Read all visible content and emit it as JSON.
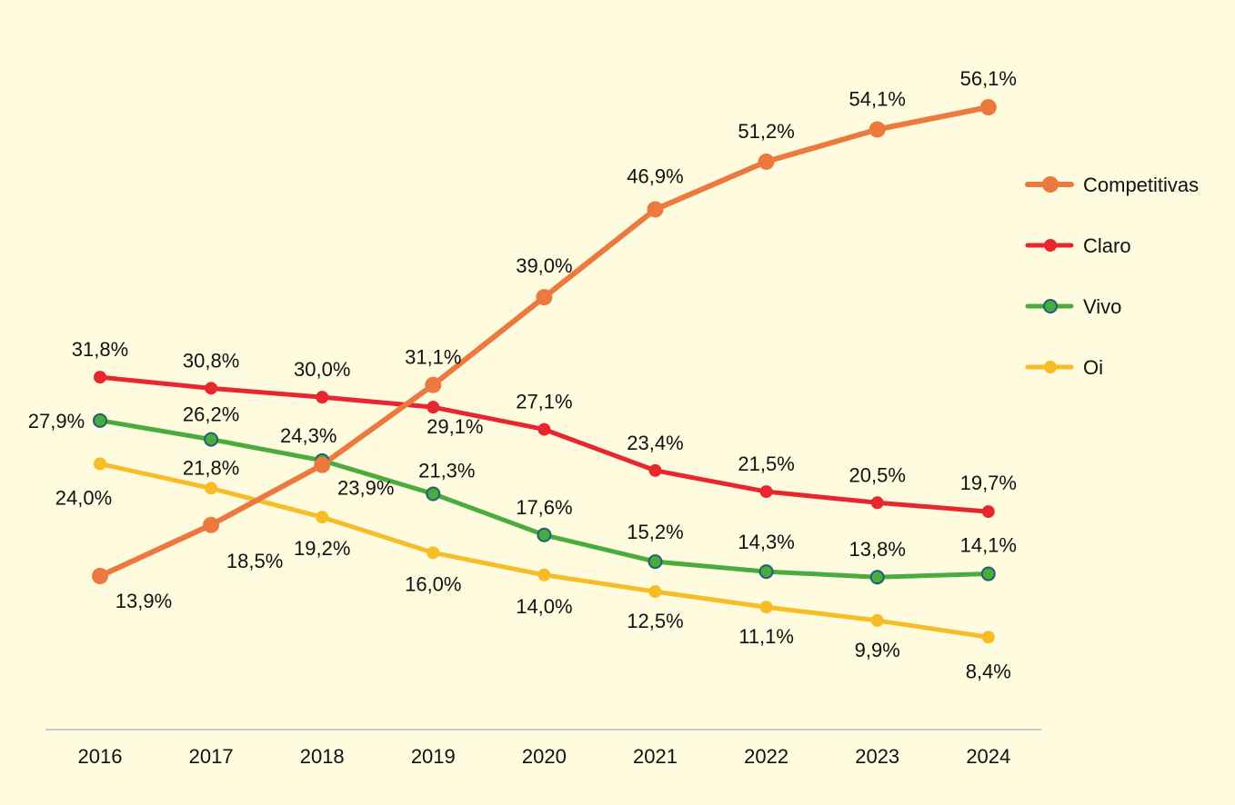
{
  "chart_data": {
    "type": "line",
    "title": "",
    "xlabel": "",
    "ylabel": "",
    "categories": [
      "2016",
      "2017",
      "2018",
      "2019",
      "2020",
      "2021",
      "2022",
      "2023",
      "2024"
    ],
    "ylim": [
      0,
      60
    ],
    "grid": false,
    "legend_position": "right",
    "series": [
      {
        "name": "Competitivas",
        "color": "#ec7a3e",
        "values": [
          13.9,
          18.5,
          23.9,
          31.1,
          39.0,
          46.9,
          51.2,
          54.1,
          56.1
        ],
        "labels": [
          "13,9%",
          "18,5%",
          "23,9%",
          "31,1%",
          "39,0%",
          "46,9%",
          "51,2%",
          "54,1%",
          "56,1%"
        ]
      },
      {
        "name": "Claro",
        "color": "#e8262e",
        "values": [
          31.8,
          30.8,
          30.0,
          29.1,
          27.1,
          23.4,
          21.5,
          20.5,
          19.7
        ],
        "labels": [
          "31,8%",
          "30,8%",
          "30,0%",
          "29,1%",
          "27,1%",
          "23,4%",
          "21,5%",
          "20,5%",
          "19,7%"
        ]
      },
      {
        "name": "Vivo",
        "color": "#4aab3e",
        "values": [
          27.9,
          26.2,
          24.3,
          21.3,
          17.6,
          15.2,
          14.3,
          13.8,
          14.1
        ],
        "labels": [
          "27,9%",
          "26,2%",
          "24,3%",
          "21,3%",
          "17,6%",
          "15,2%",
          "14,3%",
          "13,8%",
          "14,1%"
        ]
      },
      {
        "name": "Oi",
        "color": "#f6bd26",
        "values": [
          24.0,
          21.8,
          19.2,
          16.0,
          14.0,
          12.5,
          11.1,
          9.9,
          8.4
        ],
        "labels": [
          "24,0%",
          "21,8%",
          "19,2%",
          "16,0%",
          "14,0%",
          "12,5%",
          "11,1%",
          "9,9%",
          "8,4%"
        ]
      }
    ]
  }
}
